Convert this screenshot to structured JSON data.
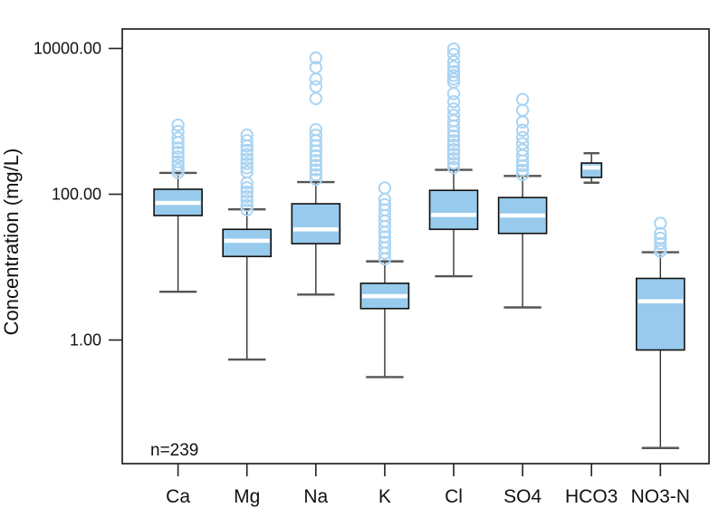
{
  "page": {
    "background": "#ffffff"
  },
  "chart_data": {
    "type": "boxplot",
    "title": "",
    "xlabel": "",
    "ylabel": "Concentration (mg/L)",
    "annotation": "n=239",
    "yscale": "log",
    "ylim": [
      0.02,
      18500
    ],
    "grid": false,
    "legend": false,
    "ytick_values": [
      10000,
      100,
      1
    ],
    "ytick_labels": [
      "10000.00",
      "100.00",
      "1.00"
    ],
    "categories": [
      "Ca",
      "Mg",
      "Na",
      "K",
      "Cl",
      "SO4",
      "HCO3",
      "NO3-N"
    ],
    "series": [
      {
        "name": "Ca",
        "whisker_low": 4.6,
        "q1": 51,
        "median": 76,
        "q3": 117,
        "whisker_high": 196,
        "rel_width": 1.0,
        "outliers": [
          890,
          730,
          590,
          510,
          430,
          375,
          325,
          280,
          248,
          218,
          198
        ]
      },
      {
        "name": "Mg",
        "whisker_low": 0.54,
        "q1": 14,
        "median": 23,
        "q3": 33,
        "whisker_high": 62,
        "rel_width": 1.0,
        "outliers": [
          650,
          545,
          460,
          400,
          350,
          303,
          263,
          230,
          202,
          143,
          123,
          107,
          93,
          81,
          70,
          61
        ]
      },
      {
        "name": "Na",
        "whisker_low": 4.2,
        "q1": 21,
        "median": 33,
        "q3": 74,
        "whisker_high": 147,
        "rel_width": 1.0,
        "outliers": [
          7400,
          5500,
          3800,
          3000,
          2050,
          770,
          645,
          545,
          462,
          393,
          337,
          290,
          250,
          215,
          185,
          160
        ]
      },
      {
        "name": "K",
        "whisker_low": 0.31,
        "q1": 2.7,
        "median": 4.0,
        "q3": 6.0,
        "whisker_high": 12,
        "rel_width": 1.0,
        "outliers": [
          122,
          85,
          72,
          61,
          51,
          43,
          36,
          30,
          26,
          22,
          18.5,
          15.5,
          13
        ]
      },
      {
        "name": "Cl",
        "whisker_low": 7.5,
        "q1": 33,
        "median": 52,
        "q3": 113,
        "whisker_high": 216,
        "rel_width": 1.0,
        "outliers": [
          9800,
          8300,
          6600,
          5600,
          4800,
          4250,
          3800,
          3450,
          2400,
          1860,
          1480,
          1210,
          1020,
          865,
          725,
          630,
          545,
          472,
          410,
          355,
          307,
          266,
          232
        ]
      },
      {
        "name": "SO4",
        "whisker_low": 2.8,
        "q1": 29,
        "median": 51,
        "q3": 90,
        "whisker_high": 178,
        "rel_width": 1.0,
        "outliers": [
          2000,
          1420,
          980,
          755,
          600,
          495,
          405,
          340,
          287,
          247,
          213,
          186
        ]
      },
      {
        "name": "HCO3",
        "whisker_low": 144,
        "q1": 170,
        "median": 232,
        "q3": 268,
        "whisker_high": 365,
        "rel_width": 0.42,
        "outliers": []
      },
      {
        "name": "NO3-N",
        "whisker_low": 0.033,
        "q1": 0.73,
        "median": 3.4,
        "q3": 7.0,
        "whisker_high": 16,
        "rel_width": 1.0,
        "outliers": [
          40,
          29,
          25,
          21,
          18,
          16.5
        ]
      }
    ],
    "colors": {
      "box_fill": "#97CAEC",
      "box_border": "#111111",
      "median_line": "#FFFFFF",
      "whisker": "#333333",
      "whisker_cap": "#555555",
      "outlier_stroke": "#A9D3F2",
      "frame": "#222222",
      "text": "#111111"
    }
  }
}
